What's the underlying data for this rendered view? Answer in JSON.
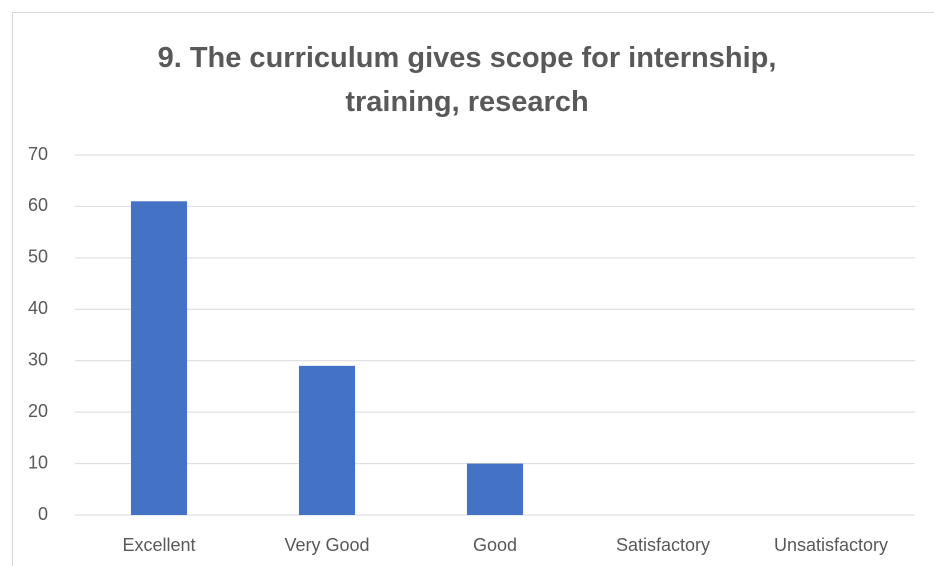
{
  "chart_data": {
    "type": "bar",
    "title": "9. The curriculum gives scope for internship, training, research",
    "categories": [
      "Excellent",
      "Very Good",
      "Good",
      "Satisfactory",
      "Unsatisfactory"
    ],
    "values": [
      61,
      29,
      10,
      0,
      0
    ],
    "color": "#4472c4",
    "ylim": [
      0,
      70
    ],
    "yticks": [
      0,
      10,
      20,
      30,
      40,
      50,
      60,
      70
    ],
    "grid": true
  }
}
